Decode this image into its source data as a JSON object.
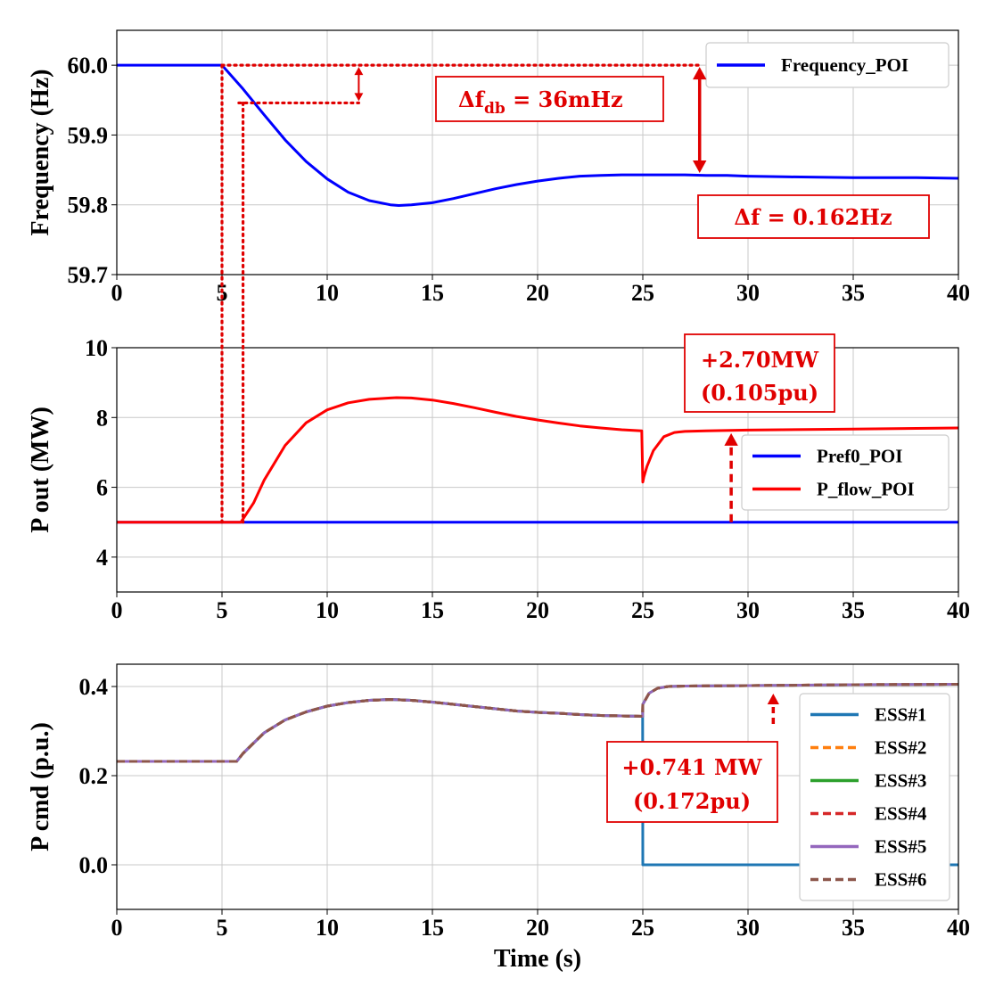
{
  "chart_data": [
    {
      "type": "line",
      "xlabel": "",
      "ylabel": "Frequency (Hz)",
      "xlim": [
        0,
        40
      ],
      "ylim": [
        59.7,
        60.05
      ],
      "xticks": [
        "0",
        "5",
        "10",
        "15",
        "20",
        "25",
        "30",
        "35",
        "40"
      ],
      "yticks": [
        "59.7",
        "59.8",
        "59.9",
        "60.0"
      ],
      "grid": true,
      "legend_position": "top-right",
      "series": [
        {
          "name": "Frequency_POI",
          "color": "#0000ff",
          "x": [
            0,
            5,
            6,
            7,
            8,
            9,
            10,
            11,
            12,
            13,
            13.4,
            14,
            15,
            16,
            17,
            18,
            19,
            20,
            21,
            22,
            23,
            24,
            25,
            26,
            27,
            28,
            29,
            30,
            32,
            35,
            38,
            40
          ],
          "y": [
            60.0,
            60.0,
            59.966,
            59.929,
            59.893,
            59.862,
            59.837,
            59.818,
            59.806,
            59.8,
            59.799,
            59.8,
            59.803,
            59.809,
            59.816,
            59.823,
            59.829,
            59.834,
            59.838,
            59.841,
            59.842,
            59.843,
            59.843,
            59.843,
            59.843,
            59.842,
            59.842,
            59.841,
            59.84,
            59.839,
            59.839,
            59.838
          ]
        }
      ],
      "annotations": [
        {
          "text": "Δf_db = 36mHz"
        },
        {
          "text": "Δf = 0.162Hz"
        }
      ]
    },
    {
      "type": "line",
      "xlabel": "",
      "ylabel": "P out (MW)",
      "xlim": [
        0,
        40
      ],
      "ylim": [
        3,
        10
      ],
      "xticks": [
        "0",
        "5",
        "10",
        "15",
        "20",
        "25",
        "30",
        "35",
        "40"
      ],
      "yticks": [
        "4",
        "6",
        "8",
        "10"
      ],
      "grid": true,
      "legend_position": "center-right",
      "series": [
        {
          "name": "Pref0_POI",
          "color": "#0000ff",
          "x": [
            0,
            40
          ],
          "y": [
            5.0,
            5.0
          ]
        },
        {
          "name": "P_flow_POI",
          "color": "#ff0000",
          "x": [
            0,
            5.9,
            6.5,
            7,
            8,
            9,
            10,
            11,
            12,
            13,
            13.3,
            14,
            15,
            16,
            17,
            18,
            19,
            20,
            21,
            22,
            23,
            24,
            24.95,
            25.0,
            25.05,
            25.2,
            25.5,
            26,
            26.5,
            27,
            28,
            30,
            35,
            40
          ],
          "y": [
            5.0,
            5.0,
            5.55,
            6.2,
            7.2,
            7.85,
            8.22,
            8.42,
            8.52,
            8.56,
            8.57,
            8.56,
            8.5,
            8.4,
            8.28,
            8.15,
            8.03,
            7.93,
            7.84,
            7.76,
            7.7,
            7.65,
            7.62,
            6.15,
            6.3,
            6.6,
            7.05,
            7.45,
            7.57,
            7.6,
            7.62,
            7.64,
            7.67,
            7.7
          ]
        }
      ],
      "annotations": [
        {
          "text": "+2.70MW"
        },
        {
          "text": "(0.105pu)"
        }
      ]
    },
    {
      "type": "line",
      "xlabel": "Time (s)",
      "ylabel": "P cmd (p.u.)",
      "xlim": [
        0,
        40
      ],
      "ylim": [
        -0.1,
        0.45
      ],
      "xticks": [
        "0",
        "5",
        "10",
        "15",
        "20",
        "25",
        "30",
        "35",
        "40"
      ],
      "yticks": [
        "0.0",
        "0.2",
        "0.4"
      ],
      "grid": true,
      "legend_position": "lower-right",
      "series": [
        {
          "name": "ESS#1",
          "color": "#1f77b4",
          "dash": "solid",
          "x": [
            0,
            5.7,
            6,
            7,
            8,
            9,
            10,
            11,
            12,
            13,
            14,
            15,
            16,
            17,
            18,
            19,
            20,
            21,
            22,
            23,
            24,
            24.99,
            25.0,
            40
          ],
          "y": [
            0.232,
            0.232,
            0.25,
            0.296,
            0.325,
            0.343,
            0.356,
            0.364,
            0.369,
            0.371,
            0.369,
            0.365,
            0.36,
            0.355,
            0.35,
            0.345,
            0.342,
            0.34,
            0.337,
            0.335,
            0.334,
            0.333,
            0.0,
            0.0
          ]
        },
        {
          "name": "ESS#2",
          "color": "#ff7f0e",
          "dash": "dashed",
          "x": [
            0,
            5.7,
            6,
            7,
            8,
            9,
            10,
            11,
            12,
            13,
            14,
            15,
            16,
            17,
            18,
            19,
            20,
            21,
            22,
            23,
            24,
            24.99,
            25.0,
            25.3,
            25.7,
            26.2,
            27,
            30,
            35,
            40
          ],
          "y": [
            0.232,
            0.232,
            0.25,
            0.296,
            0.325,
            0.343,
            0.356,
            0.364,
            0.369,
            0.371,
            0.369,
            0.365,
            0.36,
            0.355,
            0.35,
            0.345,
            0.342,
            0.34,
            0.337,
            0.335,
            0.334,
            0.333,
            0.36,
            0.385,
            0.396,
            0.4,
            0.401,
            0.402,
            0.404,
            0.405
          ]
        },
        {
          "name": "ESS#3",
          "color": "#2ca02c",
          "dash": "solid",
          "x": [
            0,
            5.7,
            6,
            7,
            8,
            9,
            10,
            11,
            12,
            13,
            14,
            15,
            16,
            17,
            18,
            19,
            20,
            21,
            22,
            23,
            24,
            24.99,
            25.0,
            25.3,
            25.7,
            26.2,
            27,
            30,
            35,
            40
          ],
          "y": [
            0.232,
            0.232,
            0.25,
            0.296,
            0.325,
            0.343,
            0.356,
            0.364,
            0.369,
            0.371,
            0.369,
            0.365,
            0.36,
            0.355,
            0.35,
            0.345,
            0.342,
            0.34,
            0.337,
            0.335,
            0.334,
            0.333,
            0.36,
            0.385,
            0.396,
            0.4,
            0.401,
            0.402,
            0.404,
            0.405
          ]
        },
        {
          "name": "ESS#4",
          "color": "#d62728",
          "dash": "dashed",
          "x": [
            0,
            5.7,
            6,
            7,
            8,
            9,
            10,
            11,
            12,
            13,
            14,
            15,
            16,
            17,
            18,
            19,
            20,
            21,
            22,
            23,
            24,
            24.99,
            25.0,
            25.3,
            25.7,
            26.2,
            27,
            30,
            35,
            40
          ],
          "y": [
            0.232,
            0.232,
            0.25,
            0.296,
            0.325,
            0.343,
            0.356,
            0.364,
            0.369,
            0.371,
            0.369,
            0.365,
            0.36,
            0.355,
            0.35,
            0.345,
            0.342,
            0.34,
            0.337,
            0.335,
            0.334,
            0.333,
            0.36,
            0.385,
            0.396,
            0.4,
            0.401,
            0.402,
            0.404,
            0.405
          ]
        },
        {
          "name": "ESS#5",
          "color": "#9467bd",
          "dash": "solid",
          "x": [
            0,
            5.7,
            6,
            7,
            8,
            9,
            10,
            11,
            12,
            13,
            14,
            15,
            16,
            17,
            18,
            19,
            20,
            21,
            22,
            23,
            24,
            24.99,
            25.0,
            25.3,
            25.7,
            26.2,
            27,
            30,
            35,
            40
          ],
          "y": [
            0.232,
            0.232,
            0.25,
            0.296,
            0.325,
            0.343,
            0.356,
            0.364,
            0.369,
            0.371,
            0.369,
            0.365,
            0.36,
            0.355,
            0.35,
            0.345,
            0.342,
            0.34,
            0.337,
            0.335,
            0.334,
            0.333,
            0.36,
            0.385,
            0.396,
            0.4,
            0.401,
            0.402,
            0.404,
            0.405
          ]
        },
        {
          "name": "ESS#6",
          "color": "#8c564b",
          "dash": "dashed",
          "x": [
            0,
            5.7,
            6,
            7,
            8,
            9,
            10,
            11,
            12,
            13,
            14,
            15,
            16,
            17,
            18,
            19,
            20,
            21,
            22,
            23,
            24,
            24.99,
            25.0,
            25.3,
            25.7,
            26.2,
            27,
            30,
            35,
            40
          ],
          "y": [
            0.232,
            0.232,
            0.25,
            0.296,
            0.325,
            0.343,
            0.356,
            0.364,
            0.369,
            0.371,
            0.369,
            0.365,
            0.36,
            0.355,
            0.35,
            0.345,
            0.342,
            0.34,
            0.337,
            0.335,
            0.334,
            0.333,
            0.36,
            0.385,
            0.396,
            0.4,
            0.401,
            0.402,
            0.404,
            0.405
          ]
        }
      ],
      "annotations": [
        {
          "text": "+0.741 MW"
        },
        {
          "text": "(0.172pu)"
        }
      ]
    }
  ]
}
